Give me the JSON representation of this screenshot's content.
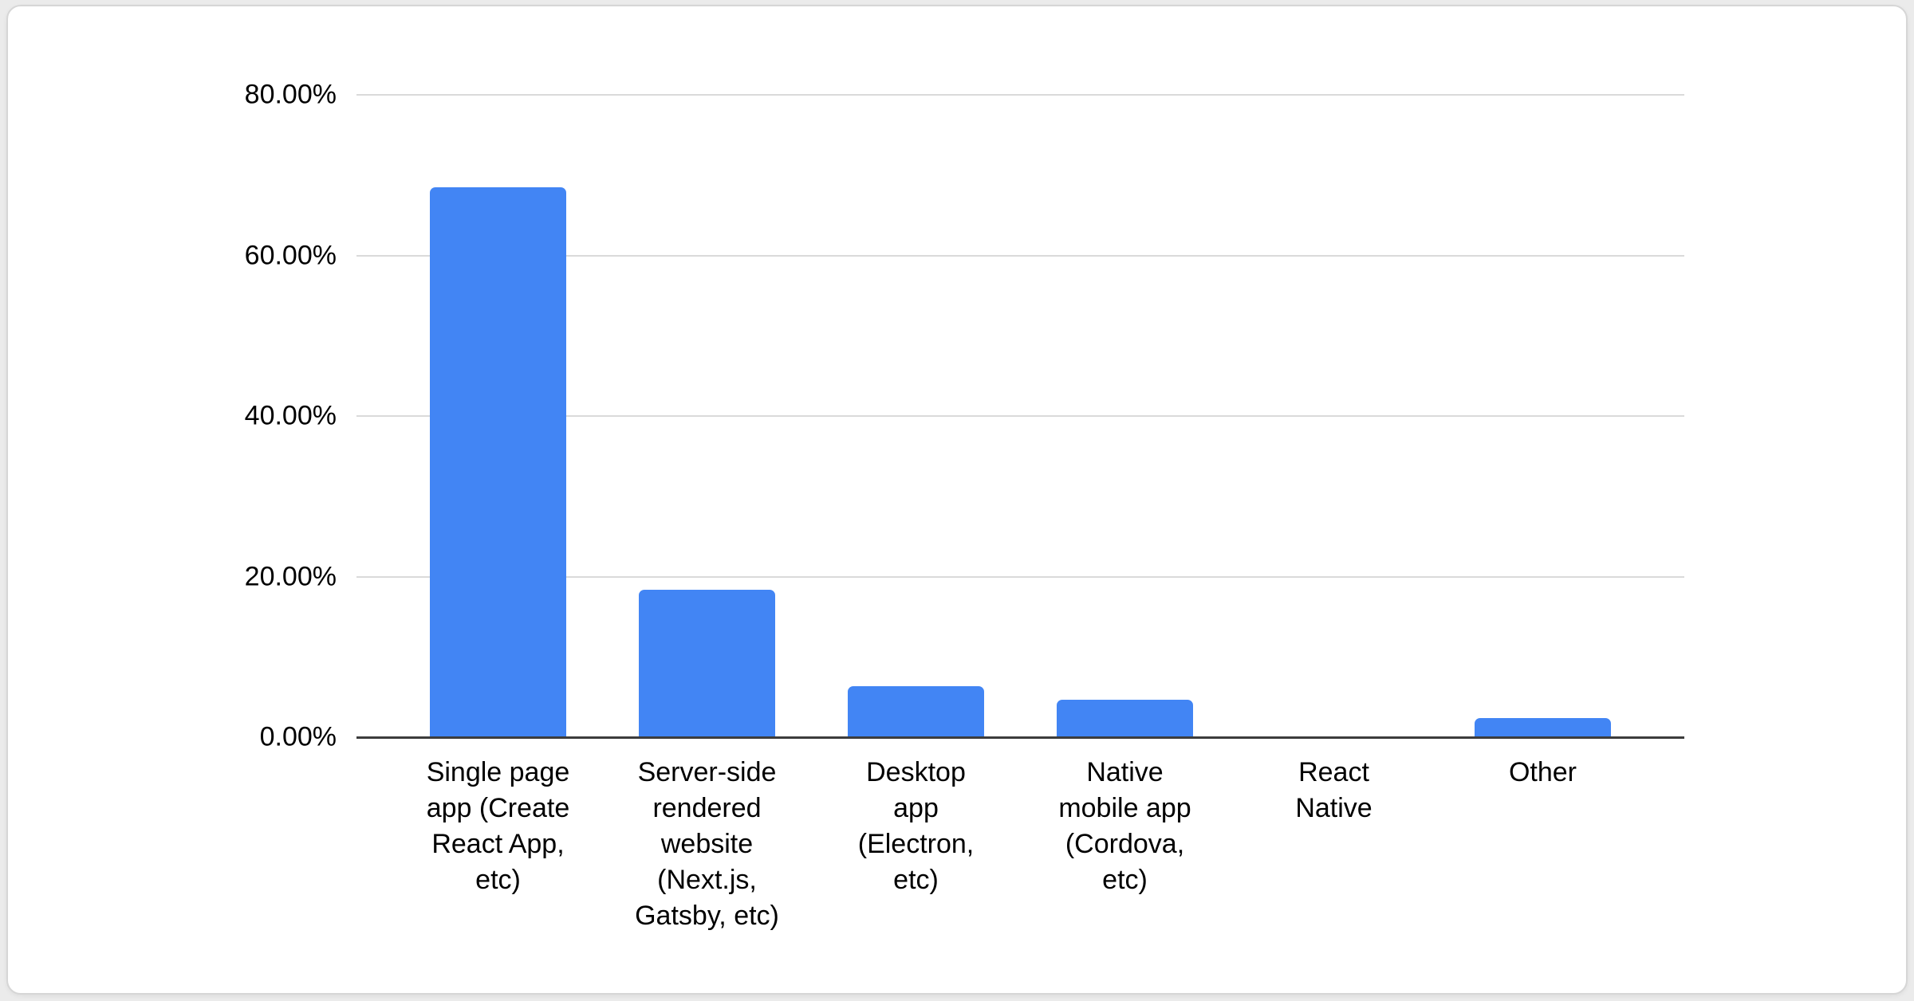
{
  "chart_data": {
    "type": "bar",
    "title": "",
    "xlabel": "",
    "ylabel": "",
    "categories": [
      "Single page app (Create React App, etc)",
      "Server-side rendered website (Next.js, Gatsby, etc)",
      "Desktop app (Electron, etc)",
      "Native mobile app (Cordova, etc)",
      "React Native",
      "Other"
    ],
    "category_label_text": [
      "Single page\napp (Create\nReact App,\netc)",
      "Server-side\nrendered\nwebsite\n(Next.js,\nGatsby, etc)",
      "Desktop\napp\n(Electron,\netc)",
      "Native\nmobile app\n(Cordova,\netc)",
      "React\nNative",
      "Other"
    ],
    "values": [
      68.5,
      18.4,
      6.4,
      4.7,
      0,
      2.4
    ],
    "unit": "%",
    "ylim": [
      0,
      80
    ],
    "ytick_step": 20,
    "ytick_labels": [
      "0.00%",
      "20.00%",
      "40.00%",
      "60.00%",
      "80.00%"
    ],
    "grid": true,
    "legend": false,
    "colors": {
      "bar": "#4285f4",
      "gridline": "#dadada",
      "axis_baseline": "#3c3c3c",
      "text": "#000000",
      "card_background": "#ffffff",
      "card_border": "#d6d6d6",
      "page_background": "#ebebeb"
    }
  }
}
